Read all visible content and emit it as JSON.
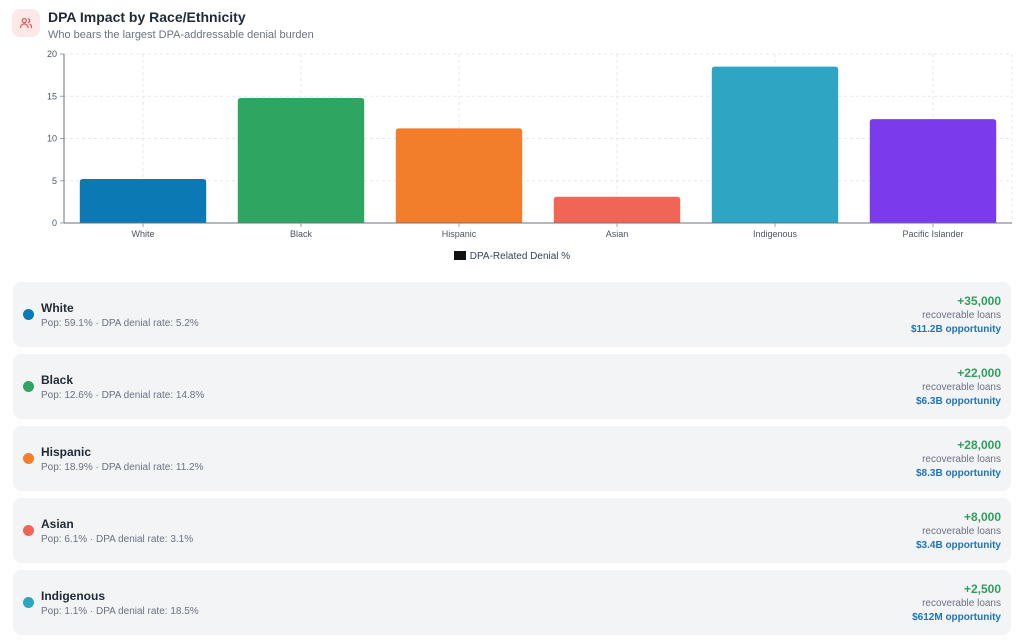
{
  "header": {
    "icon": "users-icon",
    "title": "DPA Impact by Race/Ethnicity",
    "subtitle": "Who bears the largest DPA-addressable denial burden"
  },
  "chart_data": {
    "type": "bar",
    "categories": [
      "White",
      "Black",
      "Hispanic",
      "Asian",
      "Indigenous",
      "Pacific Islander"
    ],
    "series": [
      {
        "name": "DPA-Related Denial %",
        "values": [
          5.2,
          14.8,
          11.2,
          3.1,
          18.5,
          12.3
        ]
      }
    ],
    "colors": [
      "#0a79b4",
      "#2fa562",
      "#f27d2b",
      "#f06555",
      "#2ea5c3",
      "#7c3aed"
    ],
    "yticks": [
      0,
      5,
      10,
      15,
      20
    ],
    "ylim": [
      0,
      20
    ],
    "grid": true,
    "legend": "bottom-center",
    "legend_swatch_color": "#111111"
  },
  "cards": [
    {
      "name": "White",
      "stats": "Pop: 59.1% · DPA denial rate: 5.2%",
      "delta": "+35,000",
      "loans": "recoverable loans",
      "opportunity": "$11.2B opportunity",
      "color": "#0a79b4"
    },
    {
      "name": "Black",
      "stats": "Pop: 12.6% · DPA denial rate: 14.8%",
      "delta": "+22,000",
      "loans": "recoverable loans",
      "opportunity": "$6.3B opportunity",
      "color": "#2fa562"
    },
    {
      "name": "Hispanic",
      "stats": "Pop: 18.9% · DPA denial rate: 11.2%",
      "delta": "+28,000",
      "loans": "recoverable loans",
      "opportunity": "$8.3B opportunity",
      "color": "#f27d2b"
    },
    {
      "name": "Asian",
      "stats": "Pop: 6.1% · DPA denial rate: 3.1%",
      "delta": "+8,000",
      "loans": "recoverable loans",
      "opportunity": "$3.4B opportunity",
      "color": "#f06555"
    },
    {
      "name": "Indigenous",
      "stats": "Pop: 1.1% · DPA denial rate: 18.5%",
      "delta": "+2,500",
      "loans": "recoverable loans",
      "opportunity": "$612M opportunity",
      "color": "#2ea5c3"
    }
  ]
}
